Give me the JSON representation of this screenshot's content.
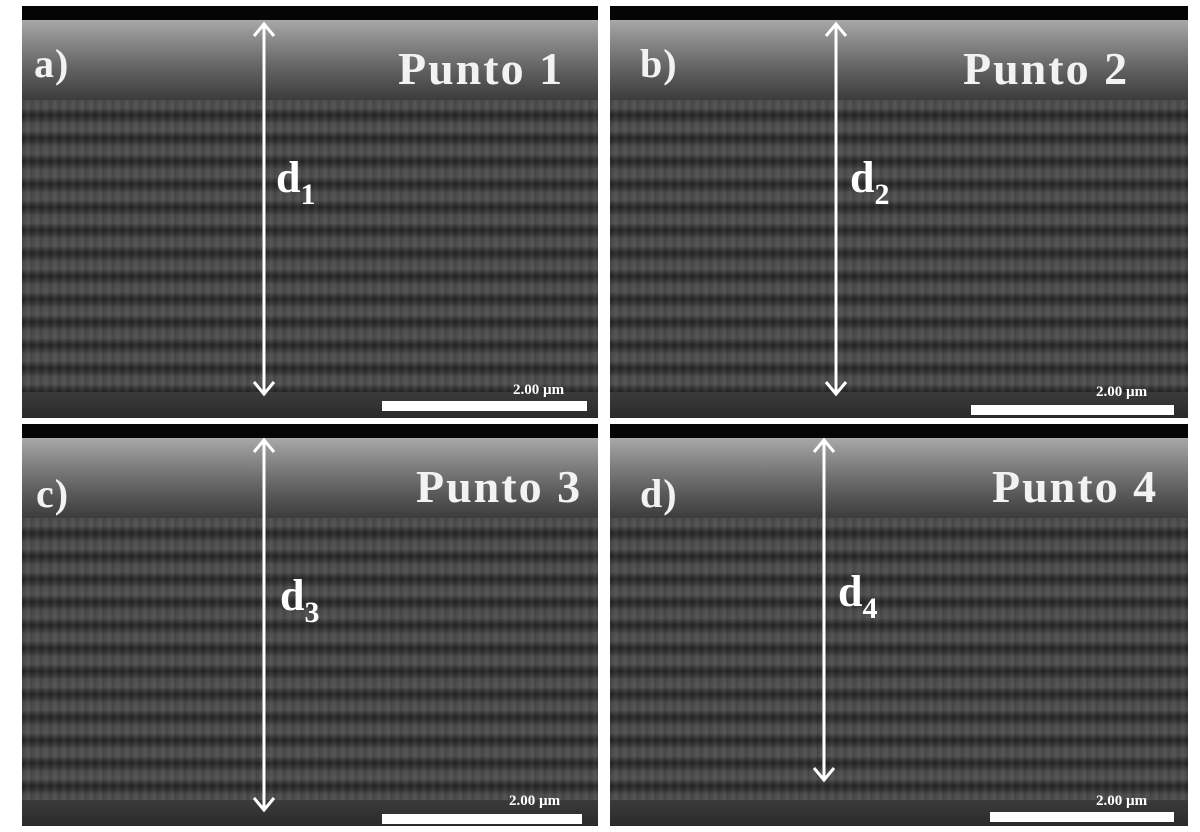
{
  "panels": [
    {
      "letter": "a)",
      "title": "Punto 1",
      "dist_main": "d",
      "dist_sub": "1",
      "scale_label": "2.00 µm"
    },
    {
      "letter": "b)",
      "title": "Punto 2",
      "dist_main": "d",
      "dist_sub": "2",
      "scale_label": "2.00 µm"
    },
    {
      "letter": "c)",
      "title": "Punto 3",
      "dist_main": "d",
      "dist_sub": "3",
      "scale_label": "2.00 µm"
    },
    {
      "letter": "d)",
      "title": "Punto 4",
      "dist_main": "d",
      "dist_sub": "4",
      "scale_label": "2.00 µm"
    }
  ],
  "colors": {
    "background": "#ffffff",
    "label": "#f2f2f2",
    "arrow": "#ffffff"
  }
}
